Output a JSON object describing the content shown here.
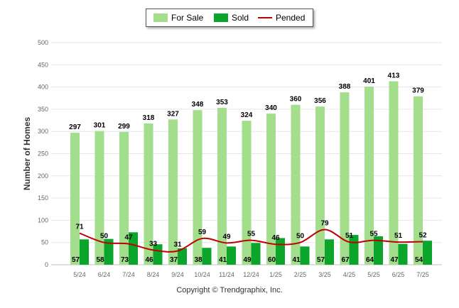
{
  "colors": {
    "for_sale": "#a2de8b",
    "sold": "#0aa52a",
    "pended": "#c00000",
    "grid": "#e6e6e6",
    "axis_text": "#666666"
  },
  "legend": {
    "for_sale_label": "For Sale",
    "sold_label": "Sold",
    "pended_label": "Pended"
  },
  "copyright": "Copyright © Trendgraphix, Inc.",
  "chart_data": {
    "type": "bar",
    "ylabel": "Number of Homes",
    "xlabel": "",
    "ylim": [
      0,
      500
    ],
    "yticks": [
      0,
      50,
      100,
      150,
      200,
      250,
      300,
      350,
      400,
      450,
      500
    ],
    "grid": true,
    "legend_position": "top-center",
    "categories": [
      "5/24",
      "6/24",
      "7/24",
      "8/24",
      "9/24",
      "10/24",
      "11/24",
      "12/24",
      "1/25",
      "2/25",
      "3/25",
      "4/25",
      "5/25",
      "6/25",
      "7/25"
    ],
    "series": [
      {
        "name": "For Sale",
        "kind": "bar",
        "values": [
          297,
          301,
          299,
          318,
          327,
          348,
          353,
          324,
          340,
          360,
          356,
          388,
          401,
          413,
          379
        ]
      },
      {
        "name": "Sold",
        "kind": "bar",
        "values": [
          57,
          58,
          73,
          46,
          37,
          38,
          41,
          49,
          60,
          41,
          57,
          67,
          64,
          47,
          54
        ]
      },
      {
        "name": "Pended",
        "kind": "line",
        "values": [
          71,
          50,
          47,
          33,
          31,
          59,
          49,
          55,
          46,
          50,
          79,
          51,
          55,
          51,
          52
        ]
      }
    ]
  }
}
